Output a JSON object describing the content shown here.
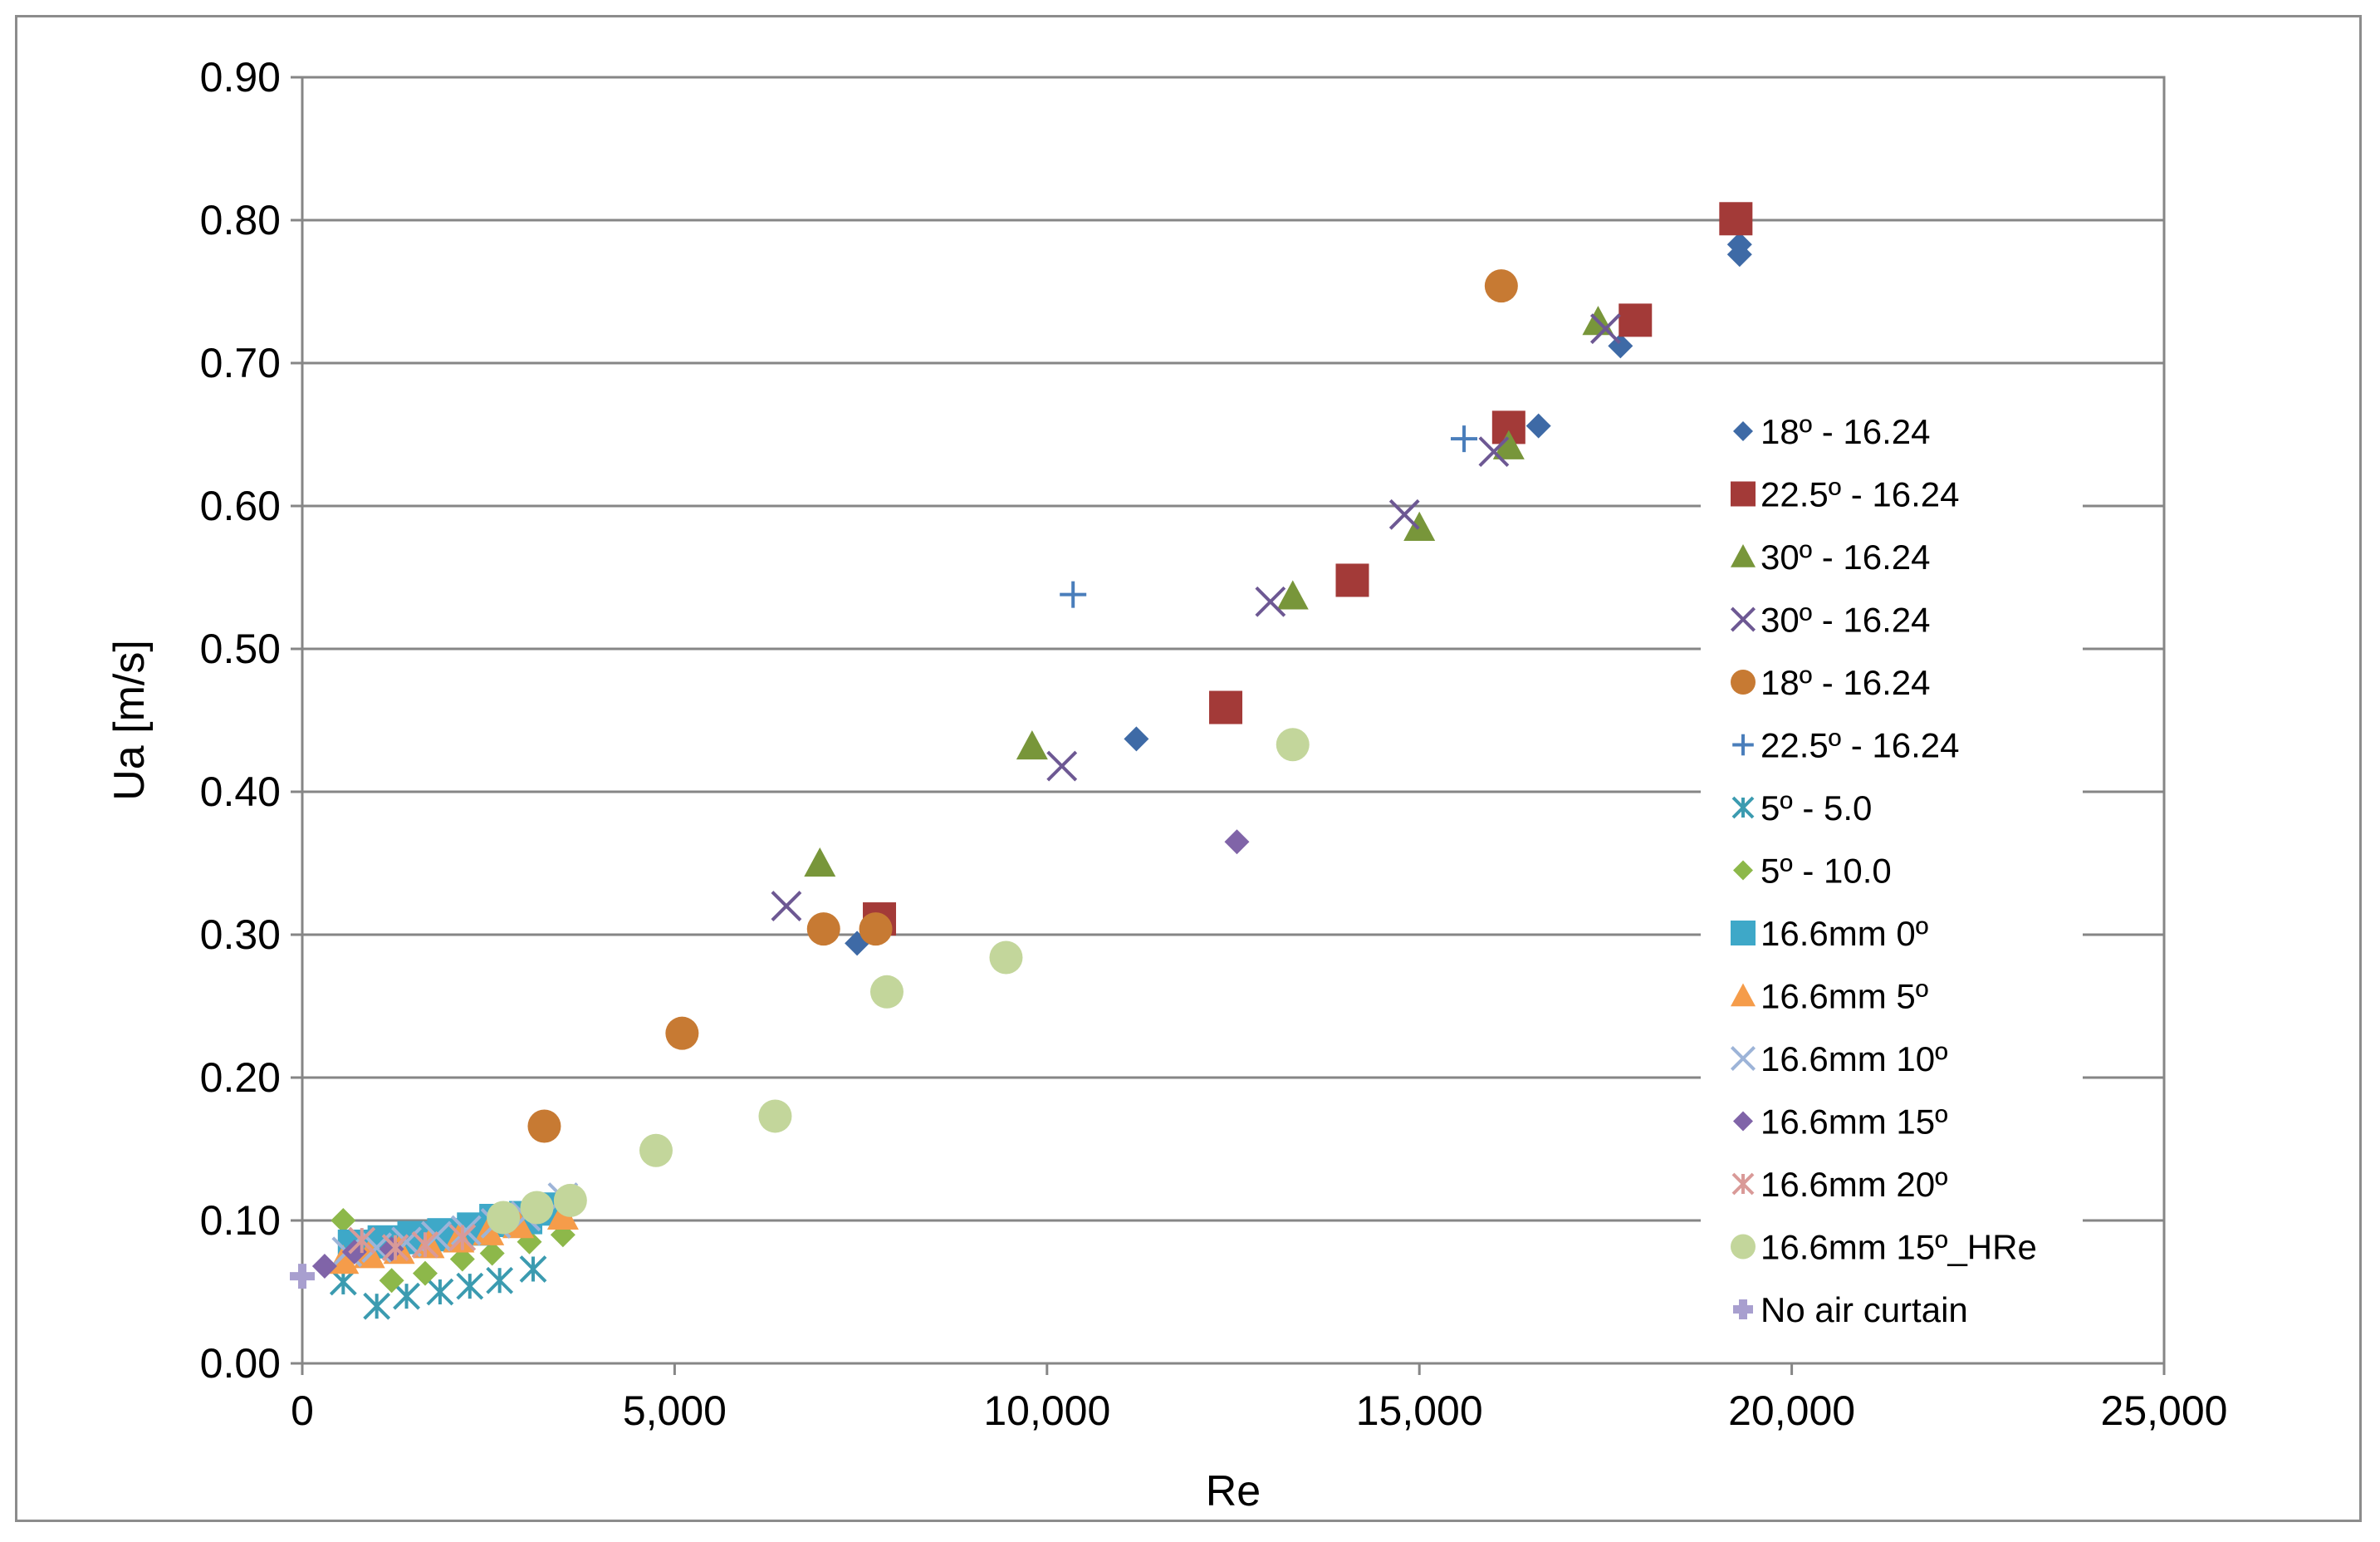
{
  "chart_data": {
    "type": "scatter",
    "title": "",
    "xlabel": "Re",
    "ylabel": "Ua [m/s]",
    "xlim": [
      0,
      25000
    ],
    "ylim": [
      0,
      0.9
    ],
    "x_ticks": [
      0,
      5000,
      10000,
      15000,
      20000,
      25000
    ],
    "x_tick_labels": [
      "0",
      "5,000",
      "10,000",
      "15,000",
      "20,000",
      "25,000"
    ],
    "y_ticks": [
      0,
      0.1,
      0.2,
      0.3,
      0.4,
      0.5,
      0.6,
      0.7,
      0.8,
      0.9
    ],
    "y_tick_labels": [
      "0.00",
      "0.10",
      "0.20",
      "0.30",
      "0.40",
      "0.50",
      "0.60",
      "0.70",
      "0.80",
      "0.90"
    ],
    "grid": "horizontal",
    "legend_position": "right-inside",
    "series": [
      {
        "name": "18º - 16.24",
        "marker": "diamond",
        "color": "#3e6aa6",
        "points": [
          [
            7450,
            0.294
          ],
          [
            11200,
            0.437
          ],
          [
            16600,
            0.656
          ],
          [
            17700,
            0.712
          ],
          [
            19300,
            0.776
          ],
          [
            19300,
            0.783
          ]
        ]
      },
      {
        "name": "22.5º - 16.24",
        "marker": "square",
        "color": "#a33a38",
        "points": [
          [
            7750,
            0.311
          ],
          [
            12400,
            0.459
          ],
          [
            14100,
            0.548
          ],
          [
            16200,
            0.655
          ],
          [
            17900,
            0.73
          ],
          [
            19250,
            0.801
          ]
        ]
      },
      {
        "name": "30º - 16.24",
        "marker": "triangle",
        "color": "#78963a",
        "points": [
          [
            6950,
            0.35
          ],
          [
            9800,
            0.432
          ],
          [
            13300,
            0.537
          ],
          [
            15000,
            0.585
          ],
          [
            16200,
            0.642
          ],
          [
            17400,
            0.729
          ]
        ]
      },
      {
        "name": "30º - 16.24",
        "marker": "x",
        "color": "#6d5893",
        "points": [
          [
            6500,
            0.32
          ],
          [
            10200,
            0.418
          ],
          [
            13000,
            0.533
          ],
          [
            14800,
            0.594
          ],
          [
            16000,
            0.638
          ],
          [
            17500,
            0.724
          ]
        ]
      },
      {
        "name": "18º - 16.24",
        "marker": "circle",
        "color": "#c77a33",
        "points": [
          [
            3250,
            0.166
          ],
          [
            5100,
            0.231
          ],
          [
            7000,
            0.304
          ],
          [
            7700,
            0.304
          ],
          [
            16100,
            0.754
          ]
        ]
      },
      {
        "name": "22.5º - 16.24",
        "marker": "plus",
        "color": "#4a7ebb",
        "points": [
          [
            10350,
            0.538
          ],
          [
            15600,
            0.647
          ]
        ]
      },
      {
        "name": "5º  - 5.0",
        "marker": "asterisk",
        "color": "#3b9bb0",
        "points": [
          [
            550,
            0.057
          ],
          [
            1000,
            0.04
          ],
          [
            1400,
            0.047
          ],
          [
            1850,
            0.05
          ],
          [
            2250,
            0.054
          ],
          [
            2650,
            0.058
          ],
          [
            3100,
            0.066
          ]
        ]
      },
      {
        "name": "5º - 10.0",
        "marker": "diamond",
        "color": "#8db84a",
        "points": [
          [
            550,
            0.1
          ],
          [
            1200,
            0.058
          ],
          [
            1650,
            0.063
          ],
          [
            2150,
            0.073
          ],
          [
            2550,
            0.077
          ],
          [
            3050,
            0.085
          ],
          [
            3500,
            0.09
          ]
        ]
      },
      {
        "name": "16.6mm 0º",
        "marker": "square",
        "color": "#3ea8c8",
        "points": [
          [
            700,
            0.082
          ],
          [
            1100,
            0.085
          ],
          [
            1500,
            0.088
          ],
          [
            1900,
            0.09
          ],
          [
            2300,
            0.094
          ],
          [
            2600,
            0.1
          ],
          [
            3000,
            0.102
          ],
          [
            3400,
            0.108
          ]
        ]
      },
      {
        "name": "16.6mm 5º",
        "marker": "triangle",
        "color": "#f59c4a",
        "points": [
          [
            550,
            0.072
          ],
          [
            900,
            0.076
          ],
          [
            1300,
            0.079
          ],
          [
            1700,
            0.083
          ],
          [
            2100,
            0.087
          ],
          [
            2500,
            0.092
          ],
          [
            2900,
            0.097
          ],
          [
            3500,
            0.103
          ]
        ]
      },
      {
        "name": "16.6mm 10º",
        "marker": "x",
        "color": "#9db4d8",
        "points": [
          [
            600,
            0.078
          ],
          [
            1000,
            0.081
          ],
          [
            1400,
            0.085
          ],
          [
            1800,
            0.089
          ],
          [
            2200,
            0.093
          ],
          [
            2600,
            0.098
          ],
          [
            3000,
            0.103
          ],
          [
            3500,
            0.116
          ]
        ]
      },
      {
        "name": "16.6mm 15º",
        "marker": "diamond",
        "color": "#8064a8",
        "points": [
          [
            300,
            0.068
          ],
          [
            700,
            0.078
          ],
          [
            1200,
            0.08
          ],
          [
            12550,
            0.365
          ]
        ]
      },
      {
        "name": "16.6mm 20º",
        "marker": "asterisk",
        "color": "#d99a98",
        "points": [
          [
            800,
            0.086
          ],
          [
            1250,
            0.081
          ],
          [
            1650,
            0.083
          ],
          [
            2150,
            0.088
          ]
        ]
      },
      {
        "name": "16.6mm 15º_HRe",
        "marker": "circle",
        "color": "#c3d69b",
        "points": [
          [
            2700,
            0.102
          ],
          [
            3150,
            0.109
          ],
          [
            3600,
            0.114
          ],
          [
            4750,
            0.149
          ],
          [
            6350,
            0.173
          ],
          [
            7850,
            0.26
          ],
          [
            9450,
            0.284
          ],
          [
            13300,
            0.433
          ]
        ]
      },
      {
        "name": "No air curtain",
        "marker": "plus-bold",
        "color": "#a89fcf",
        "points": [
          [
            0,
            0.061
          ]
        ]
      }
    ]
  }
}
